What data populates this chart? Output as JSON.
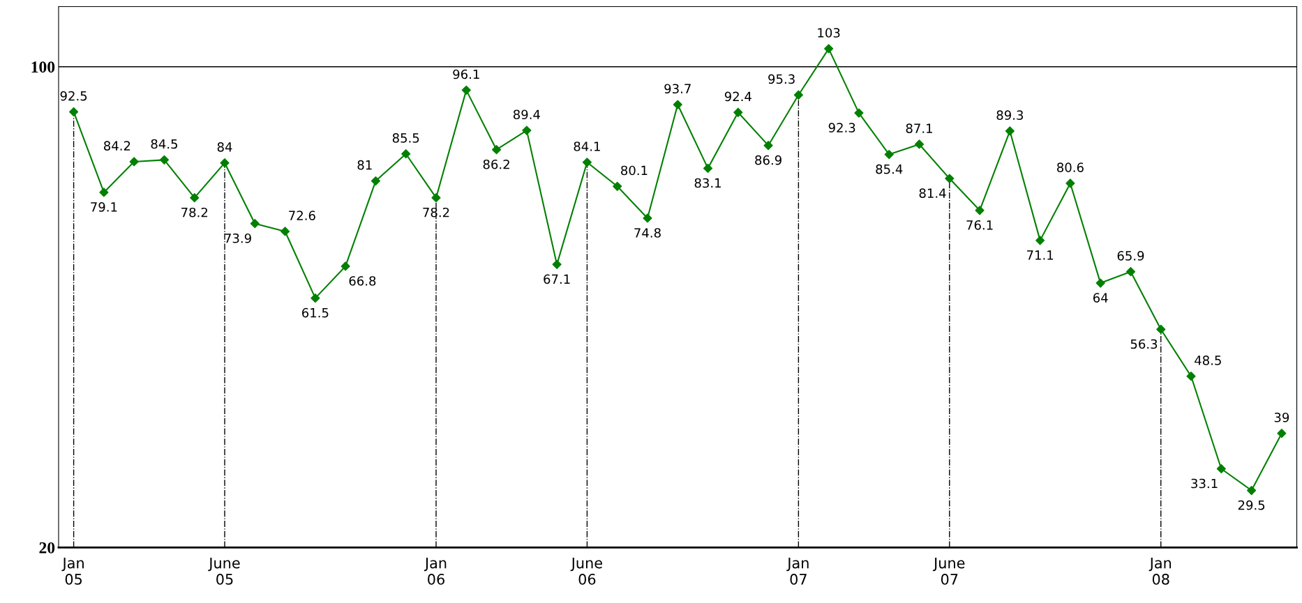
{
  "chart_data": {
    "type": "line",
    "categories": [
      "Jan\n05",
      null,
      null,
      null,
      null,
      "June\n05",
      null,
      null,
      null,
      null,
      null,
      null,
      "Jan\n06",
      null,
      null,
      null,
      null,
      "June\n06",
      null,
      null,
      null,
      null,
      null,
      null,
      "Jan\n07",
      null,
      null,
      null,
      null,
      "June\n07",
      null,
      null,
      null,
      null,
      null,
      null,
      "Jan\n08",
      null,
      null,
      null,
      null
    ],
    "series": [
      {
        "color": "#008000",
        "values": [
          92.5,
          79.1,
          84.2,
          84.5,
          78.2,
          84,
          73.9,
          72.6,
          61.5,
          66.8,
          81,
          85.5,
          78.2,
          96.1,
          86.2,
          89.4,
          67.1,
          84.1,
          80.1,
          74.8,
          93.7,
          83.1,
          92.4,
          86.9,
          95.3,
          103,
          92.3,
          85.4,
          87.1,
          81.4,
          76.1,
          89.3,
          71.1,
          80.6,
          64,
          65.9,
          56.3,
          48.5,
          33.1,
          29.5,
          39
        ]
      }
    ],
    "ylim": [
      20,
      110
    ],
    "yticks": [
      20,
      100
    ],
    "grid": "x",
    "ref_lines": [
      {
        "axis": "y",
        "value": 100,
        "color": "#000000"
      }
    ],
    "marker": "diamond",
    "line_style": "solid",
    "data_labels": true,
    "legend": false
  }
}
